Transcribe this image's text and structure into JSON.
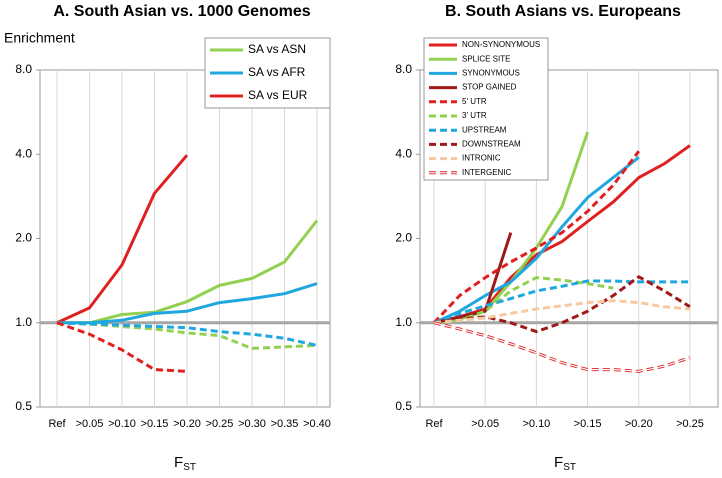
{
  "chart_data": [
    {
      "type": "line",
      "title": "A. South Asian vs. 1000 Genomes",
      "ylabel": "Enrichment",
      "xlabel": "F",
      "xlabel_sub": "ST",
      "categories": [
        "Ref",
        ">0.05",
        ">0.10",
        ">0.15",
        ">0.20",
        ">0.25",
        ">0.30",
        ">0.35",
        ">0.40"
      ],
      "log_scale": true,
      "ylim": [
        0.5,
        8
      ],
      "yticks": [
        {
          "value": 0.5,
          "label": "0.5"
        },
        {
          "value": 1,
          "label": "1.0"
        },
        {
          "value": 2,
          "label": "2.0"
        },
        {
          "value": 4,
          "label": "4.0"
        },
        {
          "value": 8,
          "label": "8.0"
        }
      ],
      "grid": true,
      "legend": "upper right",
      "series": [
        {
          "name": "SA vs ASN",
          "color": "#92d050",
          "style": "solid",
          "values": [
            1.0,
            1.0,
            1.07,
            1.09,
            1.19,
            1.36,
            1.44,
            1.65,
            2.32
          ]
        },
        {
          "name": "SA vs AFR",
          "color": "#1fa8e0",
          "style": "solid",
          "values": [
            1.0,
            1.0,
            1.02,
            1.08,
            1.1,
            1.18,
            1.22,
            1.27,
            1.38
          ]
        },
        {
          "name": "SA vs EUR",
          "color": "#e02020",
          "style": "solid",
          "values": [
            1.0,
            1.13,
            1.61,
            2.9,
            3.97,
            null,
            null,
            null,
            null
          ]
        },
        {
          "color": "#92d050",
          "style": "dashed",
          "values": [
            1.0,
            0.99,
            0.97,
            0.95,
            0.92,
            0.9,
            0.81,
            0.82,
            0.83
          ]
        },
        {
          "color": "#1fa8e0",
          "style": "dashed",
          "values": [
            1.0,
            0.99,
            0.98,
            0.97,
            0.96,
            0.93,
            0.91,
            0.88,
            0.83
          ]
        },
        {
          "color": "#e02020",
          "style": "dashed",
          "values": [
            1.0,
            0.91,
            0.8,
            0.68,
            0.67,
            null,
            null,
            null,
            null
          ]
        }
      ]
    },
    {
      "type": "line",
      "title": "B. South Asians vs. Europeans",
      "xlabel": "F",
      "xlabel_sub": "ST",
      "categories": [
        "Ref",
        null,
        ">0.05",
        null,
        ">0.10",
        null,
        ">0.15",
        null,
        ">0.20",
        null,
        ">0.25"
      ],
      "log_scale": true,
      "ylim": [
        0.5,
        8
      ],
      "yticks": [
        {
          "value": 0.5,
          "label": "0.5"
        },
        {
          "value": 1,
          "label": "1.0"
        },
        {
          "value": 2,
          "label": "2.0"
        },
        {
          "value": 4,
          "label": "4.0"
        },
        {
          "value": 8,
          "label": "8.0"
        }
      ],
      "grid": true,
      "legend": "upper left",
      "series": [
        {
          "name": "NON-SYNONYMOUS",
          "color": "#e02020",
          "style": "solid",
          "values": [
            1.0,
            1.05,
            1.12,
            1.45,
            1.75,
            1.95,
            2.3,
            2.7,
            3.3,
            3.7,
            4.3
          ]
        },
        {
          "name": "SPLICE SITE",
          "color": "#92d050",
          "style": "solid",
          "values": [
            1.0,
            1.03,
            1.1,
            1.4,
            1.85,
            2.6,
            4.8,
            null,
            null,
            null,
            null
          ]
        },
        {
          "name": "SYNONYMOUS",
          "color": "#1fa8e0",
          "style": "solid",
          "values": [
            1.0,
            1.1,
            1.25,
            1.4,
            1.7,
            2.2,
            2.8,
            3.3,
            3.9,
            null,
            null
          ]
        },
        {
          "name": "STOP GAINED",
          "color": "#a01818",
          "style": "solid",
          "values": [
            1.0,
            1.05,
            1.1,
            2.1,
            null,
            null,
            null,
            null,
            null,
            null,
            null
          ]
        },
        {
          "name": "5' UTR",
          "color": "#e02020",
          "style": "dashed",
          "values": [
            1.0,
            1.25,
            1.45,
            1.65,
            1.85,
            2.1,
            2.5,
            3.1,
            4.1,
            null,
            null
          ]
        },
        {
          "name": "3' UTR",
          "color": "#92d050",
          "style": "dashed",
          "values": [
            1.0,
            1.02,
            1.1,
            1.3,
            1.45,
            1.42,
            1.38,
            1.33,
            null,
            null,
            null
          ]
        },
        {
          "name": "UPSTREAM",
          "color": "#1fa8e0",
          "style": "dashed",
          "values": [
            1.0,
            1.08,
            1.15,
            1.22,
            1.3,
            1.35,
            1.41,
            1.41,
            1.4,
            1.4,
            1.4
          ]
        },
        {
          "name": "DOWNSTREAM",
          "color": "#a01818",
          "style": "dashed",
          "values": [
            1.0,
            1.03,
            1.05,
            1.0,
            0.93,
            1.0,
            1.1,
            1.25,
            1.46,
            1.3,
            1.14
          ]
        },
        {
          "name": "INTRONIC",
          "color": "#f8c8a0",
          "style": "dashed",
          "values": [
            1.0,
            1.02,
            1.04,
            1.08,
            1.12,
            1.15,
            1.18,
            1.2,
            1.18,
            1.14,
            1.12
          ]
        },
        {
          "name": "INTERGENIC",
          "color": "#e02020",
          "style": "hollow-dashed",
          "values": [
            1.0,
            0.95,
            0.9,
            0.84,
            0.78,
            0.72,
            0.68,
            0.68,
            0.67,
            0.7,
            0.75
          ]
        }
      ]
    }
  ]
}
